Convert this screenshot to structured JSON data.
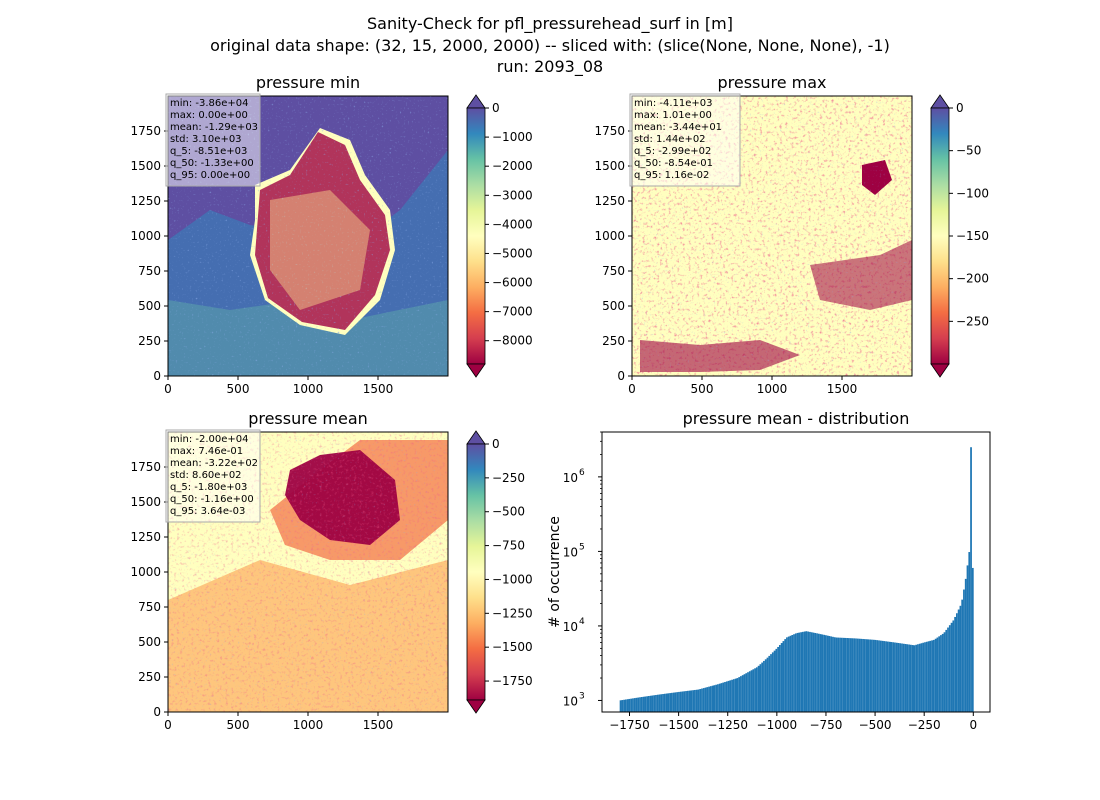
{
  "figure": {
    "title_lines": [
      "Sanity-Check for pfl_pressurehead_surf in [m]",
      "original data shape: (32, 15, 2000, 2000) -- sliced with: (slice(None, None, None), -1)",
      "run: 2093_08"
    ]
  },
  "chart_data": [
    {
      "type": "heatmap",
      "title": "pressure min",
      "xlim": [
        0,
        2000
      ],
      "ylim": [
        0,
        2000
      ],
      "xticks": [
        "0",
        "500",
        "1000",
        "1500"
      ],
      "yticks": [
        "0",
        "250",
        "500",
        "750",
        "1000",
        "1250",
        "1500",
        "1750"
      ],
      "colormap": "Spectral",
      "colorbar": {
        "ticks": [
          "0",
          "−1000",
          "−2000",
          "−3000",
          "−4000",
          "−5000",
          "−6000",
          "−7000",
          "−8000"
        ],
        "range": [
          -8800,
          0
        ]
      },
      "stats": [
        "min: -3.86e+04",
        "max: 0.00e+00",
        "mean: -1.29e+03",
        "std: 3.10e+03",
        "q_5: -8.51e+03",
        "q_50: -1.33e+00",
        "q_95: 0.00e+00"
      ]
    },
    {
      "type": "heatmap",
      "title": "pressure max",
      "xlim": [
        0,
        2000
      ],
      "ylim": [
        0,
        2000
      ],
      "xticks": [
        "0",
        "500",
        "1000",
        "1500"
      ],
      "yticks": [
        "0",
        "250",
        "500",
        "750",
        "1000",
        "1250",
        "1500",
        "1750"
      ],
      "colormap": "Spectral",
      "colorbar": {
        "ticks": [
          "0",
          "−50",
          "−100",
          "−150",
          "−200",
          "−250"
        ],
        "range": [
          -300,
          0
        ]
      },
      "stats": [
        "min: -4.11e+03",
        "max: 1.01e+00",
        "mean: -3.44e+01",
        "std: 1.44e+02",
        "q_5: -2.99e+02",
        "q_50: -8.54e-01",
        "q_95: 1.16e-02"
      ]
    },
    {
      "type": "heatmap",
      "title": "pressure mean",
      "xlim": [
        0,
        2000
      ],
      "ylim": [
        0,
        2000
      ],
      "xticks": [
        "0",
        "500",
        "1000",
        "1500"
      ],
      "yticks": [
        "0",
        "250",
        "500",
        "750",
        "1000",
        "1250",
        "1500",
        "1750"
      ],
      "colormap": "Spectral",
      "colorbar": {
        "ticks": [
          "0",
          "−250",
          "−500",
          "−750",
          "−1000",
          "−1250",
          "−1500",
          "−1750"
        ],
        "range": [
          -1890,
          0
        ]
      },
      "stats": [
        "min: -2.00e+04",
        "max: 7.46e-01",
        "mean: -3.22e+02",
        "std: 8.60e+02",
        "q_5: -1.80e+03",
        "q_50: -1.16e+00",
        "q_95: 3.64e-03"
      ]
    },
    {
      "type": "bar",
      "title": "pressure mean - distribution",
      "xlabel": "",
      "ylabel": "# of occurrence",
      "yscale": "log",
      "xlim": [
        -1890,
        85
      ],
      "ylim": [
        700,
        4000000
      ],
      "xticks": [
        {
          "value": -1750,
          "label": "−1750"
        },
        {
          "value": -1500,
          "label": "−1500"
        },
        {
          "value": -1250,
          "label": "−1250"
        },
        {
          "value": -1000,
          "label": "−1000"
        },
        {
          "value": -750,
          "label": "−750"
        },
        {
          "value": -500,
          "label": "−500"
        },
        {
          "value": -250,
          "label": "−250"
        },
        {
          "value": 0,
          "label": "0"
        }
      ],
      "yticks": [
        {
          "value": 1000,
          "label": "10",
          "exp": "3"
        },
        {
          "value": 10000,
          "label": "10",
          "exp": "4"
        },
        {
          "value": 100000,
          "label": "10",
          "exp": "5"
        },
        {
          "value": 1000000,
          "label": "10",
          "exp": "6"
        }
      ],
      "color": "#1f77b4",
      "bin_range": [
        -1800,
        2
      ],
      "counts": [
        {
          "x": -1800,
          "y": 1000
        },
        {
          "x": -1700,
          "y": 1100
        },
        {
          "x": -1600,
          "y": 1200
        },
        {
          "x": -1500,
          "y": 1300
        },
        {
          "x": -1400,
          "y": 1400
        },
        {
          "x": -1300,
          "y": 1650
        },
        {
          "x": -1200,
          "y": 2000
        },
        {
          "x": -1100,
          "y": 2800
        },
        {
          "x": -1050,
          "y": 3700
        },
        {
          "x": -1000,
          "y": 5000
        },
        {
          "x": -950,
          "y": 7000
        },
        {
          "x": -900,
          "y": 8000
        },
        {
          "x": -850,
          "y": 8500
        },
        {
          "x": -800,
          "y": 8000
        },
        {
          "x": -750,
          "y": 7500
        },
        {
          "x": -700,
          "y": 7000
        },
        {
          "x": -600,
          "y": 6800
        },
        {
          "x": -500,
          "y": 6500
        },
        {
          "x": -400,
          "y": 6000
        },
        {
          "x": -300,
          "y": 5500
        },
        {
          "x": -250,
          "y": 6000
        },
        {
          "x": -200,
          "y": 6500
        },
        {
          "x": -150,
          "y": 8000
        },
        {
          "x": -100,
          "y": 12000
        },
        {
          "x": -60,
          "y": 20000
        },
        {
          "x": -40,
          "y": 40000
        },
        {
          "x": -25,
          "y": 80000
        },
        {
          "x": -18,
          "y": 110000
        },
        {
          "x": -10,
          "y": 60000
        },
        {
          "x": -5,
          "y": 90000
        },
        {
          "x": 0,
          "y": 2500000
        },
        {
          "x": 2,
          "y": 50000
        }
      ]
    }
  ]
}
